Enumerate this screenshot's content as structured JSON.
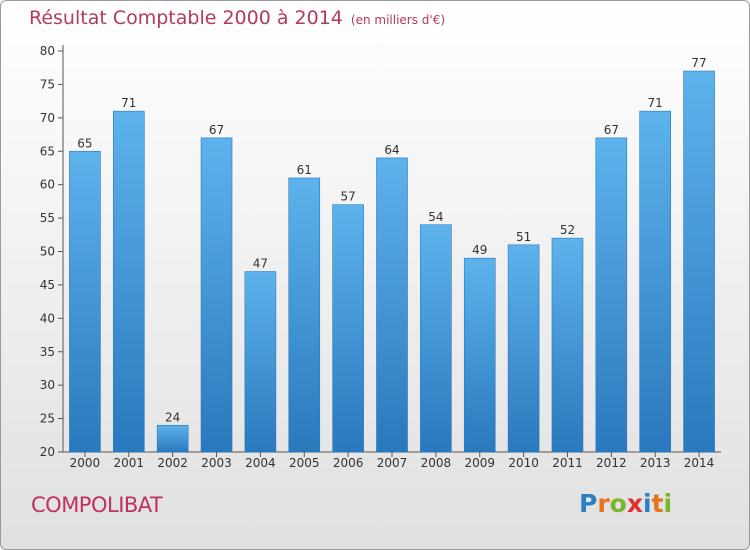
{
  "title": "Résultat Comptable 2000 à 2014",
  "unit_note": "(en milliers d'€)",
  "commune": "COMPOLIBAT",
  "logo": {
    "letters": [
      "P",
      "r",
      "o",
      "x",
      "i",
      "t",
      "i"
    ],
    "colors": [
      "#2a7fc0",
      "#e8731a",
      "#7ab52c",
      "#e03030",
      "#2a7fc0",
      "#e8731a",
      "#7ab52c"
    ]
  },
  "colors": {
    "bar": "#3f9ee0",
    "bar_dark": "#2a78bd",
    "bar_light": "#5db3ec",
    "title": "#b43a5a",
    "commune": "#c03060"
  },
  "chart_data": {
    "type": "bar",
    "title": "Résultat Comptable 2000 à 2014",
    "categories": [
      "2000",
      "2001",
      "2002",
      "2003",
      "2004",
      "2005",
      "2006",
      "2007",
      "2008",
      "2009",
      "2010",
      "2011",
      "2012",
      "2013",
      "2014"
    ],
    "values": [
      65,
      71,
      24,
      67,
      47,
      61,
      57,
      64,
      54,
      49,
      51,
      52,
      67,
      71,
      77
    ],
    "xlabel": "",
    "ylabel": "",
    "ylim": [
      20,
      80
    ],
    "yticks": [
      20,
      25,
      30,
      35,
      40,
      45,
      50,
      55,
      60,
      65,
      70,
      75,
      80
    ],
    "grid": false,
    "legend": "none"
  }
}
